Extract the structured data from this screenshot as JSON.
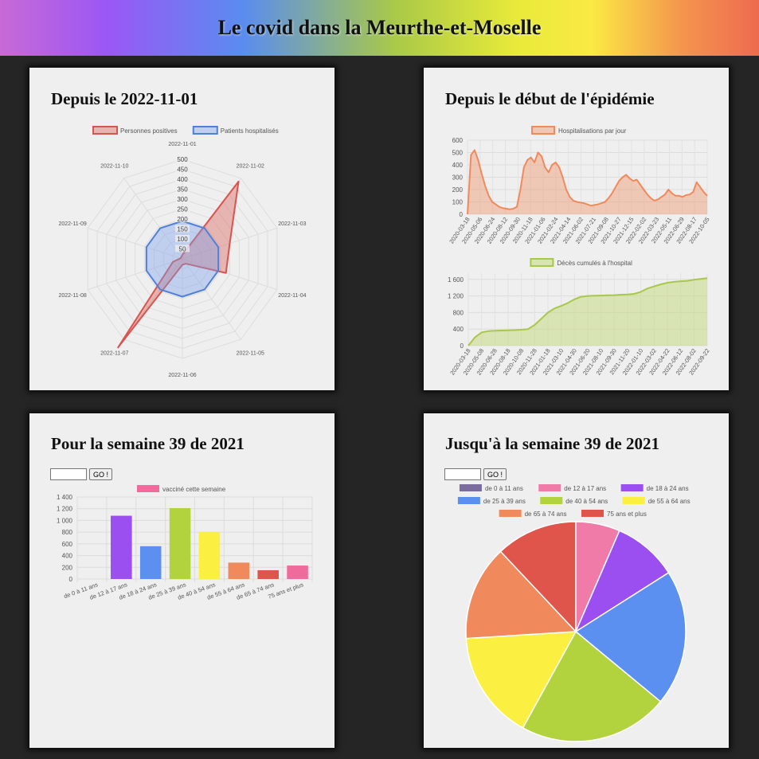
{
  "header": {
    "title": "Le covid dans la Meurthe-et-Moselle"
  },
  "cards": {
    "radar": {
      "title": "Depuis le 2022-11-01"
    },
    "epidemic": {
      "title": "Depuis le début de l'épidémie"
    },
    "week_bar": {
      "title": "Pour la semaine 39 de 2021",
      "button_label": "GO !",
      "input_value": ""
    },
    "week_pie": {
      "title": "Jusqu'à la semaine 39 de 2021",
      "button_label": "GO !",
      "input_value": ""
    }
  },
  "chart_data": [
    {
      "type": "radar",
      "labels": [
        "2022-11-01",
        "2022-11-02",
        "2022-11-03",
        "2022-11-04",
        "2022-11-05",
        "2022-11-06",
        "2022-11-07",
        "2022-11-08",
        "2022-11-09",
        "2022-11-10"
      ],
      "r_ticks": [
        50,
        100,
        150,
        200,
        250,
        300,
        350,
        400,
        450,
        500
      ],
      "rlim": [
        0,
        500
      ],
      "legend_position": "top",
      "series": [
        {
          "name": "Personnes positives",
          "color": "#d9534f",
          "fill": "rgba(220,110,105,0.45)",
          "values": [
            20,
            480,
            250,
            230,
            30,
            30,
            550,
            50,
            10,
            10
          ]
        },
        {
          "name": "Patients hospitalisés",
          "color": "#4f7fd9",
          "fill": "rgba(120,160,235,0.4)",
          "values": [
            190,
            190,
            190,
            190,
            190,
            190,
            190,
            190,
            190,
            190
          ]
        }
      ]
    },
    {
      "type": "area",
      "legend": "Hospitalisations par jour",
      "color": "#f08a5d",
      "fill": "rgba(240,150,110,0.45)",
      "y_ticks": [
        0,
        100,
        200,
        300,
        400,
        500,
        600
      ],
      "ylim": [
        0,
        600
      ],
      "x_tick_labels": [
        "2020-03-18",
        "2020-05-06",
        "2020-06-24",
        "2020-08-12",
        "2020-09-30",
        "2020-11-18",
        "2021-01-06",
        "2021-02-24",
        "2021-04-14",
        "2021-06-02",
        "2021-07-21",
        "2021-09-08",
        "2021-10-27",
        "2021-12-15",
        "2022-02-02",
        "2022-03-23",
        "2022-05-11",
        "2022-06-29",
        "2022-08-17",
        "2022-10-05"
      ],
      "values": [
        0,
        480,
        520,
        440,
        330,
        230,
        150,
        100,
        80,
        60,
        50,
        45,
        40,
        45,
        60,
        200,
        380,
        440,
        460,
        420,
        500,
        470,
        380,
        340,
        400,
        420,
        380,
        300,
        200,
        140,
        110,
        100,
        95,
        90,
        80,
        70,
        75,
        80,
        90,
        100,
        130,
        170,
        220,
        270,
        300,
        320,
        290,
        270,
        280,
        240,
        200,
        160,
        130,
        110,
        120,
        140,
        160,
        200,
        170,
        150,
        150,
        140,
        155,
        160,
        180,
        260,
        220,
        180,
        150
      ]
    },
    {
      "type": "area",
      "legend": "Décès cumulés à l'hospital",
      "color": "#a8c84a",
      "fill": "rgba(190,215,110,0.45)",
      "y_ticks": [
        0,
        400,
        800,
        1200,
        1600
      ],
      "ylim": [
        0,
        1750
      ],
      "x_tick_labels": [
        "2020-03-18",
        "2020-05-08",
        "2020-06-28",
        "2020-08-18",
        "2020-10-08",
        "2020-11-28",
        "2021-01-18",
        "2021-03-10",
        "2021-04-30",
        "2021-06-20",
        "2021-08-10",
        "2021-09-30",
        "2021-11-20",
        "2022-01-10",
        "2022-03-02",
        "2022-04-22",
        "2022-06-12",
        "2022-08-02",
        "2022-09-22"
      ],
      "values": [
        0,
        200,
        320,
        350,
        360,
        365,
        370,
        375,
        385,
        400,
        500,
        650,
        800,
        900,
        960,
        1030,
        1120,
        1180,
        1200,
        1205,
        1210,
        1215,
        1220,
        1230,
        1235,
        1250,
        1300,
        1380,
        1430,
        1480,
        1520,
        1540,
        1555,
        1565,
        1590,
        1610,
        1630
      ]
    },
    {
      "type": "bar",
      "legend": "vacciné cette semaine",
      "legend_color": "#f06a9b",
      "categories": [
        "de 0 à 11 ans",
        "de 12 à 17 ans",
        "de 18 à 24 ans",
        "de 25 à 39 ans",
        "de 40 à 54 ans",
        "de 55 à 64 ans",
        "de 65 à 74 ans",
        "75 ans et plus"
      ],
      "values": [
        0,
        1080,
        560,
        1210,
        800,
        280,
        150,
        230
      ],
      "colors": [
        "#7a6d9e",
        "#9b4ff0",
        "#5b8ff0",
        "#b2d23e",
        "#fbf042",
        "#f08a5d",
        "#e0554b",
        "#f06a9b"
      ],
      "y_ticks": [
        0,
        200,
        400,
        600,
        800,
        1000,
        1200,
        1400
      ],
      "ylim": [
        0,
        1400
      ]
    },
    {
      "type": "pie",
      "categories": [
        "de 0 à 11 ans",
        "de 12 à 17 ans",
        "de 18 à 24 ans",
        "de 25 à 39 ans",
        "de 40 à 54 ans",
        "de 55 à 64 ans",
        "de 65 à 74 ans",
        "75 ans et plus"
      ],
      "values": [
        0,
        6.5,
        9.5,
        20,
        22,
        16,
        14,
        12
      ],
      "colors": [
        "#7a6d9e",
        "#f07aa8",
        "#9b4ff0",
        "#5b8ff0",
        "#b2d23e",
        "#fbf042",
        "#f08a5d",
        "#e0554b"
      ],
      "legend_position": "top"
    }
  ]
}
